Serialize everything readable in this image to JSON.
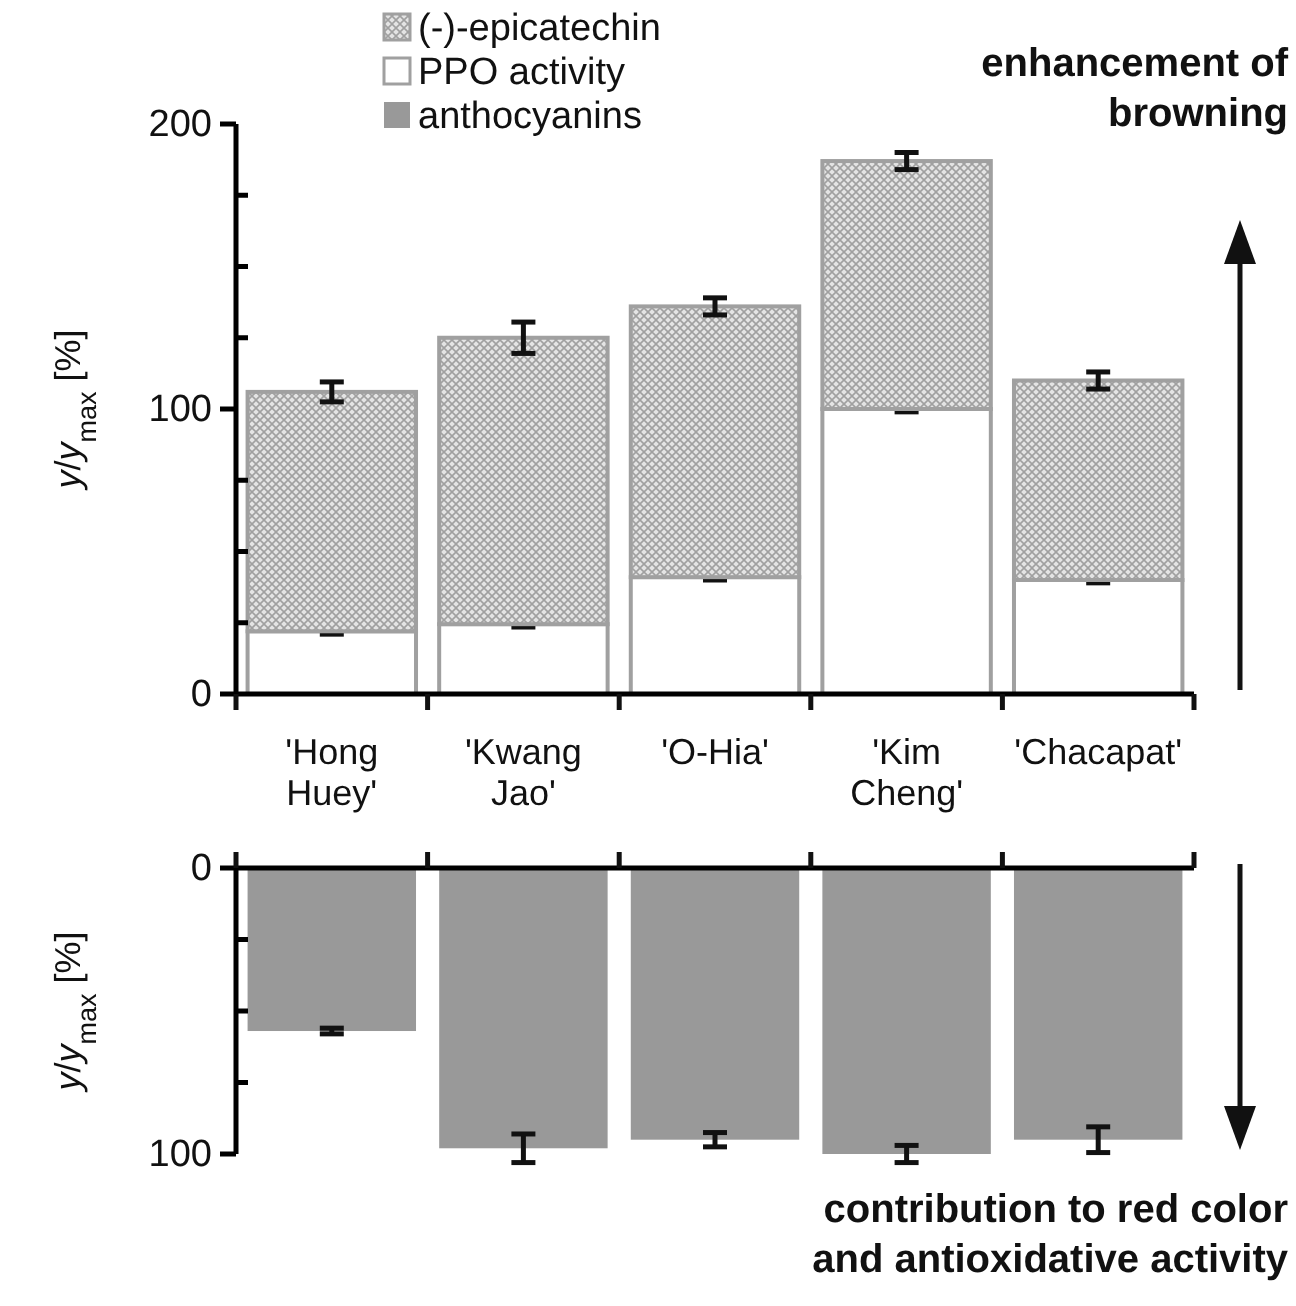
{
  "chart_data": [
    {
      "type": "bar",
      "stacked": true,
      "categories": [
        "'Hong Huey'",
        "'Kwang Jao'",
        "'O-Hia'",
        "'Kim Cheng'",
        "'Chacapat'"
      ],
      "ylabel": "y/y$_{max}$ [%]",
      "ylim": [
        0,
        200
      ],
      "yticks": [
        0,
        {
          "value": 25,
          "label": null
        },
        {
          "value": 50,
          "label": null
        },
        {
          "value": 75,
          "label": null
        },
        100,
        {
          "value": 125,
          "label": null
        },
        {
          "value": 150,
          "label": null
        },
        {
          "value": 175,
          "label": null
        },
        200
      ],
      "legend": "top",
      "annotations": [
        "enhancement of browning"
      ],
      "series": [
        {
          "name": "PPO activity",
          "color": "#ffffff",
          "values": [
            22,
            24.5,
            41,
            100,
            40
          ],
          "errors": [
            1,
            1,
            1,
            1,
            1
          ]
        },
        {
          "name": "(-)-epicatechin",
          "color": "#a0a0a0",
          "values": [
            84,
            100.5,
            95,
            87,
            70
          ],
          "errors": [
            3.5,
            5.5,
            3,
            3,
            3
          ]
        }
      ]
    },
    {
      "type": "bar",
      "categories": [
        null,
        null,
        null,
        null,
        null
      ],
      "tick_labels": "y",
      "ylabel": "y/y$_{max}$ [%]",
      "ylim": [
        100,
        0
      ],
      "yticks": [
        0,
        {
          "value": 25,
          "label": null
        },
        {
          "value": 50,
          "label": null
        },
        {
          "value": 75,
          "label": null
        },
        100
      ],
      "legend": "top",
      "annotations": [
        "contribution to red color and antioxidative activity"
      ],
      "series": [
        {
          "name": "anthocyanins",
          "color": "#999999",
          "values": [
            57,
            98,
            95,
            100,
            95
          ],
          "errors": [
            1,
            5,
            2.5,
            3,
            4.5
          ]
        }
      ]
    }
  ]
}
